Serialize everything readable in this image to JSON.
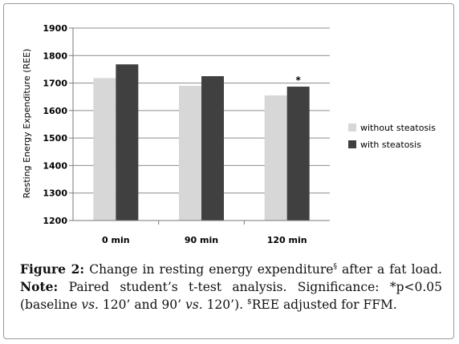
{
  "chart_data": {
    "type": "bar",
    "categories": [
      "0 min",
      "90 min",
      "120 min"
    ],
    "series": [
      {
        "name": "without steatosis",
        "values": [
          1718,
          1690,
          1655
        ],
        "color": "#d7d7d7"
      },
      {
        "name": "with steatosis",
        "values": [
          1768,
          1725,
          1687
        ],
        "color": "#404040"
      }
    ],
    "ylabel": "Resting Energy Expenditure (REE)",
    "ylim": [
      1200,
      1900
    ],
    "yticks": [
      1200,
      1300,
      1400,
      1500,
      1600,
      1700,
      1800,
      1900
    ],
    "grid": true,
    "legend_position": "right",
    "annotations": [
      {
        "category": "120 min",
        "series": "with steatosis",
        "text": "*"
      }
    ]
  },
  "caption": {
    "figure_label": "Figure 2:",
    "text_before_sup": " Change in resting energy expenditure",
    "sup1": "§",
    "text_after_sup": " after a fat load.",
    "note_label": "Note:",
    "note_text_1": " Paired student’s t-test analysis. Significance: *p<0.05 (baseline ",
    "vs1": "vs.",
    "note_text_2": " 120’ and 90’ ",
    "vs2": "vs.",
    "note_text_3": " 120’). ",
    "sup2": "$",
    "note_text_4": "REE adjusted for FFM."
  }
}
